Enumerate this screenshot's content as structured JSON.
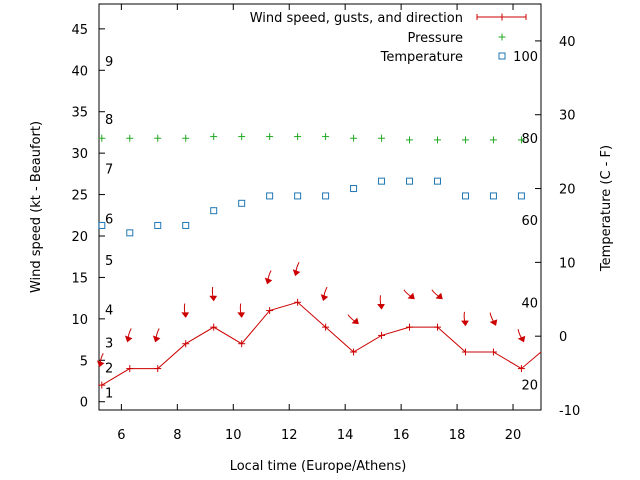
{
  "chart_data": {
    "type": "line",
    "xlabel": "Local time (Europe/Athens)",
    "ylabel_left": "Wind speed (kt - Beaufort)",
    "ylabel_right": "Temperature (C - F)",
    "xlim": [
      5.2,
      21.0
    ],
    "ylim_left": [
      -1,
      48
    ],
    "ylim_right": [
      -10,
      45
    ],
    "xticks": [
      6,
      8,
      10,
      12,
      14,
      16,
      18,
      20
    ],
    "xtick_labels": [
      "6",
      "8",
      "10",
      "12",
      "14",
      "16",
      "18",
      "20"
    ],
    "yticks_left": [
      0,
      5,
      10,
      15,
      20,
      25,
      30,
      35,
      40,
      45
    ],
    "yticks_left_labels": [
      "0",
      "5",
      "10",
      "15",
      "20",
      "25",
      "30",
      "35",
      "40",
      "45"
    ],
    "yticks_right": [
      -10,
      0,
      10,
      20,
      30,
      40
    ],
    "yticks_right_labels": [
      "-10",
      "0",
      "10",
      "20",
      "30",
      "40"
    ],
    "beaufort_scale": [
      {
        "label": "1",
        "kt": 1
      },
      {
        "label": "2",
        "kt": 4
      },
      {
        "label": "3",
        "kt": 7
      },
      {
        "label": "4",
        "kt": 11
      },
      {
        "label": "5",
        "kt": 17
      },
      {
        "label": "6",
        "kt": 22
      },
      {
        "label": "7",
        "kt": 28
      },
      {
        "label": "8",
        "kt": 34
      },
      {
        "label": "9",
        "kt": 41
      }
    ],
    "fahrenheit_scale": [
      {
        "label": "20",
        "c": -6.7
      },
      {
        "label": "40",
        "c": 4.4
      },
      {
        "label": "60",
        "c": 15.6
      },
      {
        "label": "80",
        "c": 26.7
      },
      {
        "label": "100",
        "c": 37.8
      }
    ],
    "legend": [
      {
        "label": "Wind speed, gusts, and direction",
        "color": "#cc0000",
        "marker": "line-plus"
      },
      {
        "label": "Pressure",
        "color": "#22aa22",
        "marker": "plus"
      },
      {
        "label": "Temperature",
        "color": "#1f77b4",
        "marker": "square"
      }
    ],
    "legend_position": "top-right",
    "series": [
      {
        "name": "Wind speed, gusts, and direction",
        "axis": "left",
        "x": [
          5.3,
          6.3,
          7.3,
          8.3,
          9.3,
          10.3,
          11.3,
          12.3,
          13.3,
          14.3,
          15.3,
          16.3,
          17.3,
          18.3,
          19.3,
          20.3,
          21.0
        ],
        "y": [
          2,
          4,
          4,
          7,
          9,
          7,
          11,
          12,
          9,
          6,
          8,
          9,
          9,
          6,
          6,
          4,
          6
        ]
      },
      {
        "name": "Pressure",
        "axis": "left",
        "x": [
          5.3,
          6.3,
          7.3,
          8.3,
          9.3,
          10.3,
          11.3,
          12.3,
          13.3,
          14.3,
          15.3,
          16.3,
          17.3,
          18.3,
          19.3,
          20.3
        ],
        "y": [
          31.8,
          31.8,
          31.8,
          31.8,
          32.0,
          32.0,
          32.0,
          32.0,
          32.0,
          31.8,
          31.8,
          31.6,
          31.6,
          31.6,
          31.6,
          31.6
        ]
      },
      {
        "name": "Temperature",
        "axis": "right",
        "x": [
          5.3,
          6.3,
          7.3,
          8.3,
          9.3,
          10.3,
          11.3,
          12.3,
          13.3,
          14.3,
          15.3,
          16.3,
          17.3,
          18.3,
          19.3,
          20.3
        ],
        "y": [
          15,
          14,
          15,
          15,
          17,
          18,
          19,
          19,
          19,
          20,
          21,
          21,
          21,
          19,
          19,
          19
        ]
      }
    ],
    "wind_direction_arrows": [
      {
        "x": 5.3,
        "speed": 5,
        "dir_deg": 200
      },
      {
        "x": 6.3,
        "speed": 8,
        "dir_deg": 200
      },
      {
        "x": 7.3,
        "speed": 8,
        "dir_deg": 200
      },
      {
        "x": 8.3,
        "speed": 11,
        "dir_deg": 180
      },
      {
        "x": 9.3,
        "speed": 13,
        "dir_deg": 180
      },
      {
        "x": 10.3,
        "speed": 11,
        "dir_deg": 180
      },
      {
        "x": 11.3,
        "speed": 15,
        "dir_deg": 200
      },
      {
        "x": 12.3,
        "speed": 16,
        "dir_deg": 200
      },
      {
        "x": 13.3,
        "speed": 13,
        "dir_deg": 200
      },
      {
        "x": 14.3,
        "speed": 10,
        "dir_deg": 135
      },
      {
        "x": 15.3,
        "speed": 12,
        "dir_deg": 180
      },
      {
        "x": 16.3,
        "speed": 13,
        "dir_deg": 135
      },
      {
        "x": 17.3,
        "speed": 13,
        "dir_deg": 135
      },
      {
        "x": 18.3,
        "speed": 10,
        "dir_deg": 180
      },
      {
        "x": 19.3,
        "speed": 10,
        "dir_deg": 160
      },
      {
        "x": 20.3,
        "speed": 8,
        "dir_deg": 160
      }
    ]
  }
}
